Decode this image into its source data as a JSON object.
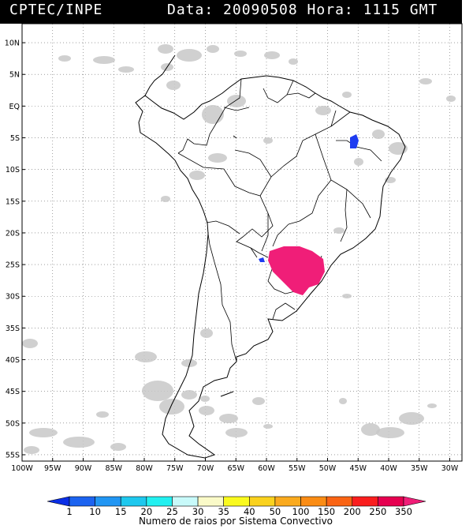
{
  "header": {
    "source": "CPTEC/INPE",
    "datetime": "Data: 20090508 Hora: 1115 GMT"
  },
  "map": {
    "lat_labels": [
      "10N",
      "5N",
      "EQ",
      "5S",
      "10S",
      "15S",
      "20S",
      "25S",
      "30S",
      "35S",
      "40S",
      "45S",
      "50S",
      "55S"
    ],
    "lon_labels": [
      "100W",
      "95W",
      "90W",
      "85W",
      "80W",
      "75W",
      "70W",
      "65W",
      "60W",
      "55W",
      "50W",
      "45W",
      "40W",
      "35W",
      "30W"
    ],
    "lon_range": [
      -100,
      -28
    ],
    "lat_range": [
      -56,
      13
    ],
    "grid": "dotted"
  },
  "colorbar": {
    "labels": [
      "1",
      "10",
      "15",
      "20",
      "25",
      "30",
      "35",
      "40",
      "50",
      "100",
      "150",
      "200",
      "250",
      "350"
    ],
    "colors": [
      "#0a2ee6",
      "#1c63f0",
      "#2196f3",
      "#1ec8ee",
      "#22f0f0",
      "#c8fafa",
      "#fafac8",
      "#fafa1e",
      "#fad21e",
      "#faaa1e",
      "#fa8c14",
      "#fa6414",
      "#fa1e1e",
      "#e60050",
      "#f01e78"
    ],
    "caption": "Numero de raios por Sistema Convectivo"
  },
  "overlay": {
    "cloud_color": "#c8c8c8",
    "storm_color": "#f01e78",
    "cell_color": "#1e3cf0"
  }
}
